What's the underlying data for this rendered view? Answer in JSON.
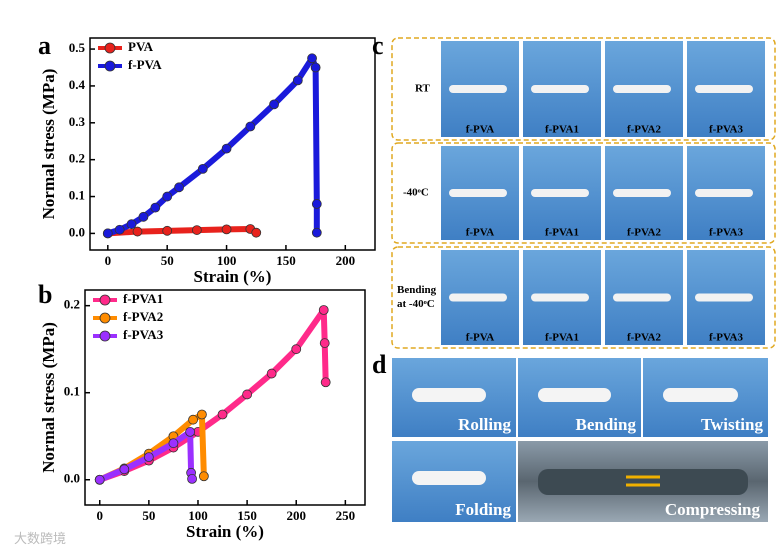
{
  "chart_data": [
    {
      "type": "line",
      "panel": "a",
      "xlabel": "Strain (%)",
      "ylabel": "Normal stress (MPa)",
      "xlim": [
        -15,
        225
      ],
      "ylim": [
        -0.045,
        0.53
      ],
      "xticks": [
        0,
        50,
        100,
        150,
        200
      ],
      "yticks": [
        {
          "value": 0,
          "label": "0.0"
        },
        {
          "value": 0.1,
          "label": "0.1"
        },
        {
          "value": 0.2,
          "label": "0.2"
        },
        {
          "value": 0.3,
          "label": "0.3"
        },
        {
          "value": 0.4,
          "label": "0.4"
        },
        {
          "value": 0.5,
          "label": "0.5"
        }
      ],
      "legend": "upper left",
      "series": [
        {
          "name": "PVA",
          "color": "#e8221c",
          "x": [
            0,
            25,
            50,
            75,
            100,
            120,
            125
          ],
          "values": [
            0,
            0.005,
            0.007,
            0.009,
            0.011,
            0.012,
            0.002
          ]
        },
        {
          "name": "f-PVA",
          "color": "#1a1adb",
          "x": [
            0,
            10,
            20,
            30,
            40,
            50,
            60,
            80,
            100,
            120,
            140,
            160,
            172,
            175,
            176,
            176
          ],
          "values": [
            0,
            0.01,
            0.025,
            0.045,
            0.07,
            0.1,
            0.125,
            0.175,
            0.23,
            0.29,
            0.35,
            0.415,
            0.475,
            0.45,
            0.08,
            0.002
          ]
        }
      ]
    },
    {
      "type": "line",
      "panel": "b",
      "xlabel": "Strain (%)",
      "ylabel": "Normal stress (MPa)",
      "xlim": [
        -15,
        270
      ],
      "ylim": [
        -0.029,
        0.218
      ],
      "xticks": [
        0,
        50,
        100,
        150,
        200,
        250
      ],
      "yticks": [
        {
          "value": 0,
          "label": "0.0"
        },
        {
          "value": 0.1,
          "label": "0.1"
        },
        {
          "value": 0.2,
          "label": "0.2"
        }
      ],
      "legend": "upper left",
      "series": [
        {
          "name": "f-PVA1",
          "color": "#ff2a8a",
          "x": [
            0,
            25,
            50,
            75,
            100,
            125,
            150,
            175,
            200,
            228,
            229,
            230
          ],
          "values": [
            0,
            0.01,
            0.022,
            0.037,
            0.055,
            0.075,
            0.098,
            0.122,
            0.15,
            0.195,
            0.157,
            0.112
          ]
        },
        {
          "name": "f-PVA2",
          "color": "#ff8c00",
          "x": [
            0,
            25,
            50,
            75,
            95,
            104,
            106
          ],
          "values": [
            0,
            0.013,
            0.03,
            0.05,
            0.069,
            0.075,
            0.004
          ]
        },
        {
          "name": "f-PVA3",
          "color": "#9b30ff",
          "x": [
            0,
            25,
            50,
            75,
            92,
            93,
            94
          ],
          "values": [
            0,
            0.012,
            0.026,
            0.042,
            0.055,
            0.008,
            0.001
          ]
        }
      ]
    }
  ],
  "panel_c": {
    "label": "c",
    "rows": [
      {
        "name": [
          "RT"
        ],
        "captions": [
          "f-PVA",
          "f-PVA1",
          "f-PVA2",
          "f-PVA3"
        ]
      },
      {
        "name": [
          "-40ᵒC"
        ],
        "captions": [
          "f-PVA",
          "f-PVA1",
          "f-PVA2",
          "f-PVA3"
        ]
      },
      {
        "name": [
          "Bending",
          "at -40ᵒC"
        ],
        "captions": [
          "f-PVA",
          "f-PVA1",
          "f-PVA2",
          "f-PVA3"
        ]
      }
    ]
  },
  "panel_d": {
    "label": "d",
    "captions": [
      "Rolling",
      "Bending",
      "Twisting",
      "Folding",
      "Compressing"
    ]
  },
  "watermark": "大数跨境"
}
